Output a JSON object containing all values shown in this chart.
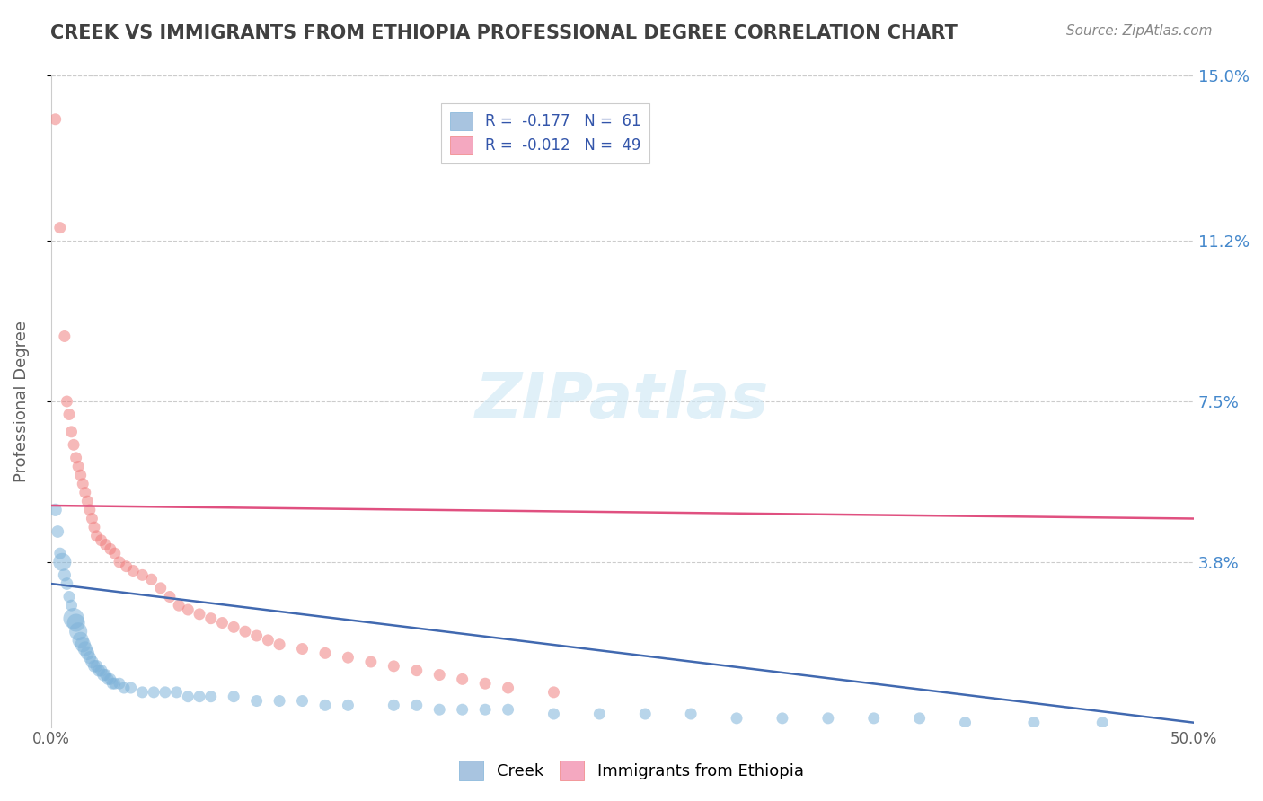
{
  "title": "CREEK VS IMMIGRANTS FROM ETHIOPIA PROFESSIONAL DEGREE CORRELATION CHART",
  "source": "Source: ZipAtlas.com",
  "ylabel": "Professional Degree",
  "xlim": [
    0.0,
    0.5
  ],
  "ylim": [
    0.0,
    0.15
  ],
  "ytick_labels": [
    "3.8%",
    "7.5%",
    "11.2%",
    "15.0%"
  ],
  "ytick_values": [
    0.038,
    0.075,
    0.112,
    0.15
  ],
  "creek_color": "#7fb3d9",
  "ethiopia_color": "#f08080",
  "creek_line_color": "#4169b0",
  "ethiopia_line_color": "#e05080",
  "creek_scatter": {
    "x": [
      0.002,
      0.003,
      0.004,
      0.005,
      0.006,
      0.007,
      0.008,
      0.009,
      0.01,
      0.011,
      0.012,
      0.013,
      0.014,
      0.015,
      0.016,
      0.017,
      0.018,
      0.019,
      0.02,
      0.021,
      0.022,
      0.023,
      0.024,
      0.025,
      0.026,
      0.027,
      0.028,
      0.03,
      0.032,
      0.035,
      0.04,
      0.045,
      0.05,
      0.055,
      0.06,
      0.065,
      0.07,
      0.08,
      0.09,
      0.1,
      0.11,
      0.12,
      0.13,
      0.15,
      0.16,
      0.17,
      0.18,
      0.19,
      0.2,
      0.22,
      0.24,
      0.26,
      0.28,
      0.3,
      0.32,
      0.34,
      0.36,
      0.38,
      0.4,
      0.43,
      0.46
    ],
    "y": [
      0.05,
      0.045,
      0.04,
      0.038,
      0.035,
      0.033,
      0.03,
      0.028,
      0.025,
      0.024,
      0.022,
      0.02,
      0.019,
      0.018,
      0.017,
      0.016,
      0.015,
      0.014,
      0.014,
      0.013,
      0.013,
      0.012,
      0.012,
      0.011,
      0.011,
      0.01,
      0.01,
      0.01,
      0.009,
      0.009,
      0.008,
      0.008,
      0.008,
      0.008,
      0.007,
      0.007,
      0.007,
      0.007,
      0.006,
      0.006,
      0.006,
      0.005,
      0.005,
      0.005,
      0.005,
      0.004,
      0.004,
      0.004,
      0.004,
      0.003,
      0.003,
      0.003,
      0.003,
      0.002,
      0.002,
      0.002,
      0.002,
      0.002,
      0.001,
      0.001,
      0.001
    ],
    "sizes": [
      30,
      28,
      25,
      60,
      30,
      28,
      25,
      25,
      80,
      60,
      60,
      50,
      45,
      40,
      35,
      30,
      30,
      28,
      28,
      28,
      28,
      28,
      25,
      25,
      25,
      25,
      25,
      25,
      25,
      25,
      25,
      25,
      25,
      25,
      25,
      25,
      25,
      25,
      25,
      25,
      25,
      25,
      25,
      25,
      25,
      25,
      25,
      25,
      25,
      25,
      25,
      25,
      25,
      25,
      25,
      25,
      25,
      25,
      25,
      25,
      25
    ]
  },
  "ethiopia_scatter": {
    "x": [
      0.002,
      0.004,
      0.006,
      0.007,
      0.008,
      0.009,
      0.01,
      0.011,
      0.012,
      0.013,
      0.014,
      0.015,
      0.016,
      0.017,
      0.018,
      0.019,
      0.02,
      0.022,
      0.024,
      0.026,
      0.028,
      0.03,
      0.033,
      0.036,
      0.04,
      0.044,
      0.048,
      0.052,
      0.056,
      0.06,
      0.065,
      0.07,
      0.075,
      0.08,
      0.085,
      0.09,
      0.095,
      0.1,
      0.11,
      0.12,
      0.13,
      0.14,
      0.15,
      0.16,
      0.17,
      0.18,
      0.19,
      0.2,
      0.22
    ],
    "y": [
      0.14,
      0.115,
      0.09,
      0.075,
      0.072,
      0.068,
      0.065,
      0.062,
      0.06,
      0.058,
      0.056,
      0.054,
      0.052,
      0.05,
      0.048,
      0.046,
      0.044,
      0.043,
      0.042,
      0.041,
      0.04,
      0.038,
      0.037,
      0.036,
      0.035,
      0.034,
      0.032,
      0.03,
      0.028,
      0.027,
      0.026,
      0.025,
      0.024,
      0.023,
      0.022,
      0.021,
      0.02,
      0.019,
      0.018,
      0.017,
      0.016,
      0.015,
      0.014,
      0.013,
      0.012,
      0.011,
      0.01,
      0.009,
      0.008
    ],
    "sizes": [
      25,
      25,
      25,
      25,
      25,
      25,
      25,
      25,
      25,
      25,
      25,
      25,
      25,
      25,
      25,
      25,
      25,
      25,
      25,
      25,
      25,
      25,
      25,
      25,
      25,
      25,
      25,
      25,
      25,
      25,
      25,
      25,
      25,
      25,
      25,
      25,
      25,
      25,
      25,
      25,
      25,
      25,
      25,
      25,
      25,
      25,
      25,
      25,
      25
    ]
  },
  "background_color": "#ffffff",
  "grid_color": "#cccccc",
  "title_color": "#404040",
  "axis_color": "#606060"
}
